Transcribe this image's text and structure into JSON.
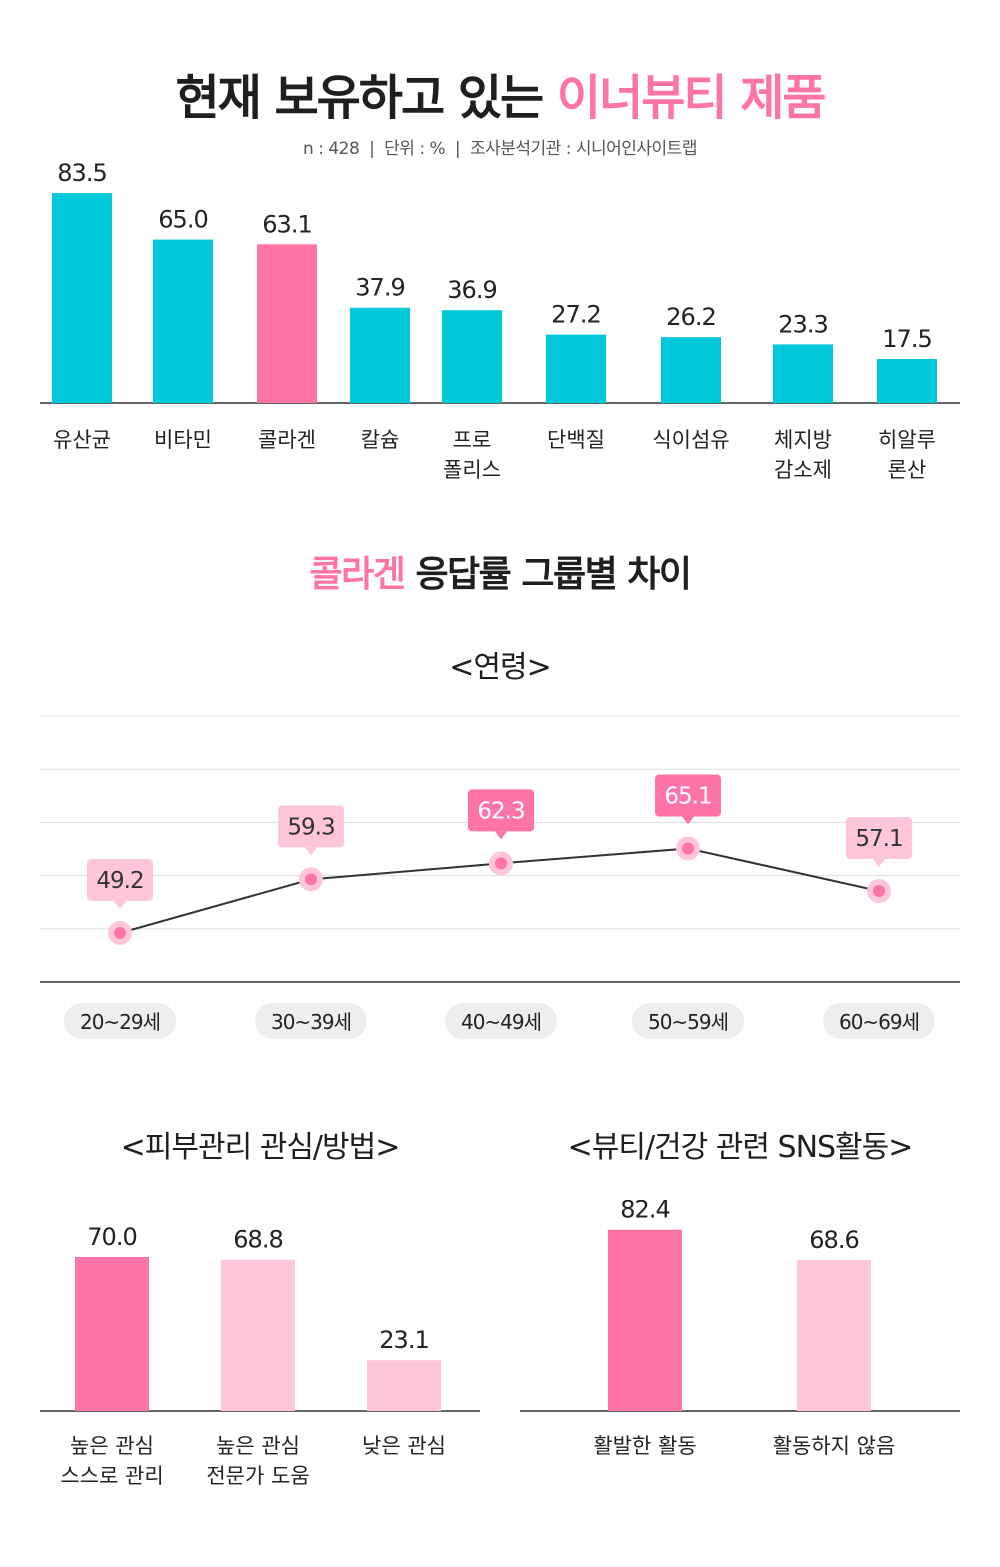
{
  "header": {
    "title_main": "현재 보유하고 있는",
    "title_highlight": "이너뷰티 제품",
    "subtitle": "n : 428  |  단위 : %  |  조사분석기관 : 시니어인사이트랩"
  },
  "section2": {
    "title_highlight": "콜라겐",
    "title_rest": "응답률 그룹별 차이"
  },
  "colors": {
    "teal": "#00c9dc",
    "pink": "#ff74a6",
    "light_pink": "#ffc6da",
    "axis": "#333333",
    "grid": "#dddddd",
    "pill_bg": "#eeeeee"
  },
  "chart_data": [
    {
      "id": "products",
      "type": "bar",
      "title": "현재 보유하고 있는 이너뷰티 제품",
      "categories": [
        "유산균",
        "비타민",
        "콜라겐",
        "칼슘",
        "프로\n폴리스",
        "단백질",
        "식이섬유",
        "체지방\n감소제",
        "히알루\n론산"
      ],
      "values": [
        83.5,
        65.0,
        63.1,
        37.9,
        36.9,
        27.2,
        26.2,
        23.3,
        17.5
      ],
      "value_labels": [
        "83.5",
        "65.0",
        "63.1",
        "37.9",
        "36.9",
        "27.2",
        "26.2",
        "23.3",
        "17.5"
      ],
      "highlight_index": 2,
      "ylim": [
        0,
        90
      ]
    },
    {
      "id": "age",
      "type": "line",
      "title": "<연령>",
      "categories": [
        "20~29세",
        "30~39세",
        "40~49세",
        "50~59세",
        "60~69세"
      ],
      "values": [
        49.2,
        59.3,
        62.3,
        65.1,
        57.1
      ],
      "value_labels": [
        "49.2",
        "59.3",
        "62.3",
        "65.1",
        "57.1"
      ],
      "highlight_indices": [
        2,
        3
      ],
      "ylim": [
        40,
        90
      ]
    },
    {
      "id": "skincare",
      "type": "bar",
      "title": "<피부관리 관심/방법>",
      "categories": [
        "높은 관심\n스스로 관리",
        "높은 관심\n전문가 도움",
        "낮은 관심"
      ],
      "values": [
        70.0,
        68.8,
        23.1
      ],
      "value_labels": [
        "70.0",
        "68.8",
        "23.1"
      ],
      "highlight_index": 0,
      "ylim": [
        0,
        90
      ]
    },
    {
      "id": "sns",
      "type": "bar",
      "title": "<뷰티/건강 관련 SNS활동>",
      "categories": [
        "활발한 활동",
        "활동하지 않음"
      ],
      "values": [
        82.4,
        68.6
      ],
      "value_labels": [
        "82.4",
        "68.6"
      ],
      "highlight_index": 0,
      "ylim": [
        0,
        120
      ]
    }
  ]
}
